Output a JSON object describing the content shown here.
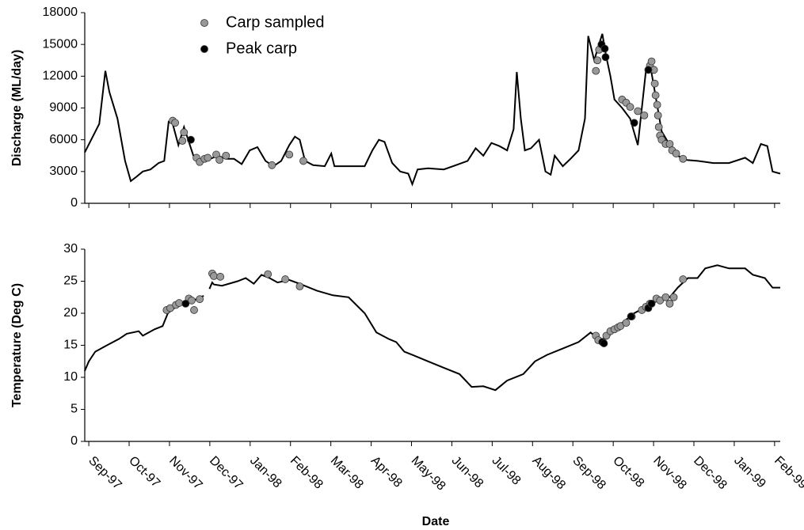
{
  "chart_data": [
    {
      "type": "line",
      "y_label": "Discharge (ML/day)",
      "color": "#000000",
      "xlim": [
        -0.1,
        17.14
      ],
      "xticks": [
        0,
        1,
        2,
        3,
        4,
        5,
        6,
        7,
        8,
        9,
        10,
        11,
        12,
        13,
        14,
        15,
        16,
        17
      ],
      "ylim": [
        0,
        18000
      ],
      "yticks": [
        0,
        3000,
        6000,
        9000,
        12000,
        15000,
        18000
      ],
      "legend": "top",
      "x": [
        -0.1,
        0.06,
        0.26,
        0.41,
        0.51,
        0.71,
        0.9,
        1.04,
        1.18,
        1.34,
        1.53,
        1.73,
        1.87,
        1.98,
        2.08,
        2.22,
        2.36,
        2.48,
        2.61,
        2.81,
        3.01,
        3.2,
        3.4,
        3.6,
        3.79,
        3.99,
        4.18,
        4.38,
        4.58,
        4.77,
        4.97,
        5.11,
        5.23,
        5.36,
        5.56,
        5.85,
        6.01,
        6.09,
        6.44,
        6.84,
        7.03,
        7.19,
        7.33,
        7.52,
        7.72,
        7.92,
        8.02,
        8.15,
        8.41,
        8.8,
        9.1,
        9.39,
        9.59,
        9.78,
        9.98,
        10.18,
        10.37,
        10.53,
        10.61,
        10.71,
        10.81,
        10.96,
        11.16,
        11.32,
        11.45,
        11.55,
        11.75,
        11.94,
        12.14,
        12.3,
        12.38,
        12.53,
        12.63,
        12.73,
        12.83,
        12.93,
        13.03,
        13.22,
        13.42,
        13.61,
        13.71,
        13.81,
        13.91,
        14.01,
        14.2,
        14.4,
        14.6,
        14.79,
        15.09,
        15.48,
        15.87,
        16.27,
        16.46,
        16.66,
        16.82,
        16.95,
        17.14
      ],
      "values": [
        4800,
        6000,
        7500,
        12500,
        10500,
        8000,
        4000,
        2100,
        2500,
        3000,
        3200,
        3800,
        4000,
        7700,
        7500,
        5500,
        7200,
        5800,
        4300,
        4000,
        4200,
        4500,
        4200,
        4200,
        3700,
        5000,
        5300,
        4000,
        3500,
        4000,
        5500,
        6300,
        6000,
        4000,
        3600,
        3500,
        4700,
        3500,
        3500,
        3500,
        5000,
        6000,
        5800,
        3800,
        3000,
        2800,
        1800,
        3200,
        3300,
        3200,
        3600,
        4000,
        5200,
        4500,
        5700,
        5400,
        5000,
        7000,
        12400,
        8000,
        5000,
        5200,
        6000,
        3000,
        2700,
        4500,
        3500,
        4200,
        5000,
        8000,
        15800,
        13500,
        14800,
        16000,
        13800,
        12000,
        9800,
        9000,
        8000,
        5500,
        9000,
        12500,
        13200,
        11000,
        6800,
        5500,
        4500,
        4100,
        4000,
        3800,
        3800,
        4300,
        3800,
        5600,
        5400,
        3000,
        2800
      ],
      "markers": [
        {
          "name": "Carp sampled",
          "color": "#999999",
          "x": [
            2.08,
            2.14,
            2.32,
            2.36,
            2.67,
            2.75,
            2.87,
            2.95,
            3.16,
            3.24,
            3.4,
            4.54,
            4.97,
            5.32,
            12.57,
            12.61,
            12.65,
            13.22,
            13.32,
            13.42,
            13.61,
            13.77,
            13.91,
            13.95,
            14.01,
            14.03,
            14.05,
            14.09,
            14.11,
            14.13,
            14.16,
            14.2,
            14.3,
            14.4,
            14.46,
            14.56,
            14.73
          ],
          "values": [
            7800,
            7600,
            5900,
            6700,
            4300,
            3900,
            4200,
            4300,
            4600,
            4100,
            4500,
            3600,
            4600,
            4000,
            12500,
            13500,
            14500,
            9800,
            9500,
            9100,
            8700,
            8300,
            13000,
            13400,
            12600,
            11300,
            10200,
            9300,
            8300,
            7200,
            6400,
            6000,
            5600,
            5600,
            5000,
            4700,
            4200
          ]
        },
        {
          "name": "Peak carp",
          "color": "#000000",
          "x": [
            2.53,
            12.71,
            12.79,
            12.81,
            13.52,
            13.87
          ],
          "values": [
            6000,
            15000,
            14600,
            13800,
            7600,
            12600
          ]
        }
      ]
    },
    {
      "type": "line",
      "y_label": "Temperature (Deg C)",
      "x_label": "Date",
      "color": "#000000",
      "xlim": [
        -0.1,
        17.14
      ],
      "xticks": [
        {
          "value": 0,
          "label": "Sep-97"
        },
        {
          "value": 1,
          "label": "Oct-97"
        },
        {
          "value": 2,
          "label": "Nov-97"
        },
        {
          "value": 3,
          "label": "Dec-97"
        },
        {
          "value": 4,
          "label": "Jan-98"
        },
        {
          "value": 5,
          "label": "Feb-98"
        },
        {
          "value": 6,
          "label": "Mar-98"
        },
        {
          "value": 7,
          "label": "Apr-98"
        },
        {
          "value": 8,
          "label": "May-98"
        },
        {
          "value": 9,
          "label": "Jun-98"
        },
        {
          "value": 10,
          "label": "Jul-98"
        },
        {
          "value": 11,
          "label": "Aug-98"
        },
        {
          "value": 12,
          "label": "Sep-98"
        },
        {
          "value": 13,
          "label": "Oct-98"
        },
        {
          "value": 14,
          "label": "Nov-98"
        },
        {
          "value": 15,
          "label": "Dec-98"
        },
        {
          "value": 16,
          "label": "Jan-99"
        },
        {
          "value": 17,
          "label": "Feb-99"
        }
      ],
      "ylim": [
        0,
        30
      ],
      "yticks": [
        0,
        5,
        10,
        15,
        20,
        25,
        30
      ],
      "x": [
        -0.1,
        0,
        0.16,
        0.45,
        0.75,
        0.94,
        1.24,
        1.34,
        1.63,
        1.83,
        1.96,
        2.16,
        2.36,
        2.61,
        2.75,
        2.85,
        2.9,
        2.99,
        3.06,
        3.1,
        3.3,
        3.69,
        3.89,
        4.09,
        4.28,
        4.48,
        4.68,
        4.97,
        5.27,
        5.66,
        6.05,
        6.44,
        6.84,
        7.13,
        7.43,
        7.62,
        7.82,
        8.02,
        8.41,
        8.8,
        9.19,
        9.49,
        9.78,
        10.08,
        10.37,
        10.77,
        11.06,
        11.36,
        11.75,
        12.14,
        12.44,
        12.63,
        12.83,
        13.12,
        13.52,
        13.81,
        14.11,
        14.4,
        14.6,
        14.85,
        15.09,
        15.28,
        15.58,
        15.87,
        16.27,
        16.46,
        16.76,
        16.95,
        17.14
      ],
      "values": [
        11,
        12.5,
        14,
        15,
        16,
        16.8,
        17.2,
        16.5,
        17.5,
        18,
        20,
        21,
        21.5,
        22,
        22.5,
        22.7,
        null,
        23.8,
        24.8,
        24.5,
        24.3,
        25,
        25.5,
        24.6,
        26,
        25.5,
        24.8,
        25.2,
        24.5,
        23.5,
        22.8,
        22.5,
        20,
        17,
        16,
        15.5,
        14,
        13.5,
        12.5,
        11.5,
        10.5,
        8.5,
        8.6,
        8,
        9.5,
        10.5,
        12.5,
        13.5,
        14.5,
        15.5,
        17,
        16,
        16,
        18,
        20,
        21,
        22,
        22.5,
        24,
        25.5,
        25.5,
        27,
        27.5,
        27,
        27,
        26,
        25.5,
        24,
        24
      ],
      "markers": [
        {
          "color": "#999999",
          "x": [
            1.93,
            2.02,
            2.16,
            2.24,
            2.48,
            2.55,
            2.61,
            2.75,
            3.06,
            3.1,
            3.26,
            4.44,
            4.87,
            5.23,
            12.57,
            12.63,
            12.83,
            12.93,
            13.03,
            13.12,
            13.18,
            13.32,
            13.46,
            13.71,
            13.81,
            13.91,
            14.07,
            14.16,
            14.3,
            14.4,
            14.5,
            14.73
          ],
          "values": [
            20.5,
            20.8,
            21.3,
            21.6,
            22.3,
            22,
            20.5,
            22.2,
            26.2,
            25.8,
            25.7,
            26.1,
            25.3,
            24.2,
            16.5,
            15.8,
            16.5,
            17.2,
            17.5,
            17.8,
            18,
            18.5,
            19.5,
            20.5,
            21,
            21.5,
            22.3,
            22,
            22.5,
            21.5,
            22.5,
            25.3
          ]
        },
        {
          "color": "#000000",
          "x": [
            2.4,
            12.73,
            12.77,
            13.44,
            13.87,
            13.95
          ],
          "values": [
            21.5,
            15.5,
            15.3,
            19.5,
            20.8,
            21.5
          ]
        }
      ]
    }
  ]
}
